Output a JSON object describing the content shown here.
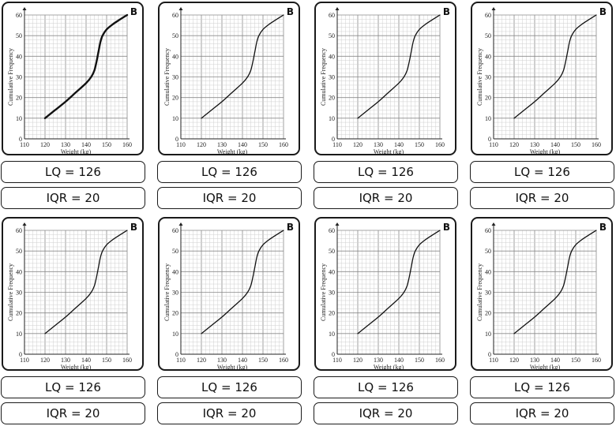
{
  "chart_data": {
    "type": "line",
    "title": "",
    "xlabel": "Weight (kg)",
    "ylabel": "Cumulative Frequency",
    "xlim": [
      110,
      160
    ],
    "ylim": [
      0,
      60
    ],
    "xticks": [
      110,
      120,
      130,
      140,
      150,
      160
    ],
    "yticks": [
      0,
      10,
      20,
      30,
      40,
      50,
      60
    ],
    "grid": true,
    "x": [
      120,
      125,
      130,
      135,
      140,
      142.5,
      144,
      145,
      146,
      147,
      148,
      150,
      153,
      156,
      160
    ],
    "y": [
      10,
      14,
      18,
      22.5,
      27,
      30,
      33,
      37,
      42,
      47,
      50,
      53,
      55.5,
      57.5,
      60
    ],
    "series": [
      {
        "name": "Cumulative Frequency",
        "values": [
          10,
          14,
          18,
          22.5,
          27,
          30,
          33,
          37,
          42,
          47,
          50,
          53,
          55.5,
          57.5,
          60
        ]
      }
    ]
  },
  "cards": [
    {
      "label": "B",
      "lq": "LQ = 126",
      "iqr": "IQR = 20"
    },
    {
      "label": "B",
      "lq": "LQ = 126",
      "iqr": "IQR = 20"
    },
    {
      "label": "B",
      "lq": "LQ = 126",
      "iqr": "IQR = 20"
    },
    {
      "label": "B",
      "lq": "LQ = 126",
      "iqr": "IQR = 20"
    },
    {
      "label": "B",
      "lq": "LQ = 126",
      "iqr": "IQR = 20"
    },
    {
      "label": "B",
      "lq": "LQ = 126",
      "iqr": "IQR = 20"
    },
    {
      "label": "B",
      "lq": "LQ = 126",
      "iqr": "IQR = 20"
    },
    {
      "label": "B",
      "lq": "LQ = 126",
      "iqr": "IQR = 20"
    }
  ]
}
